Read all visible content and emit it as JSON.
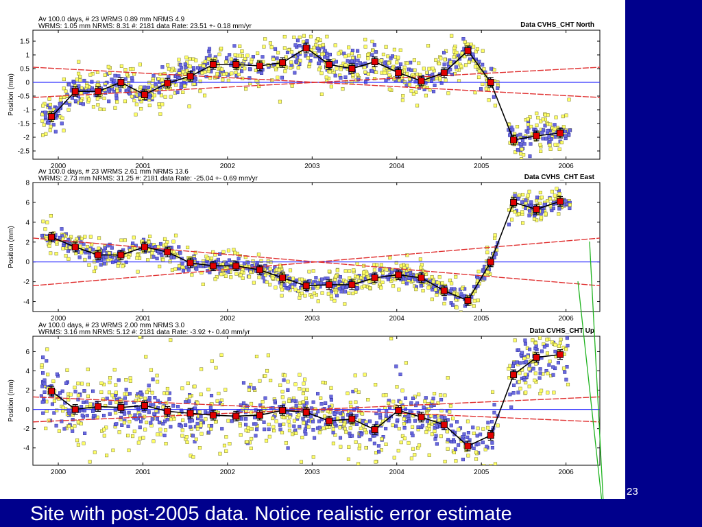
{
  "slide": {
    "caption": "Site with post-2005 data.  Notice realistic error estimate",
    "page_number": "23",
    "colors": {
      "background": "#00008c",
      "panel": "#ffffff",
      "caption": "#ffffff"
    }
  },
  "chart_data": [
    {
      "type": "scatter",
      "title": "Data CVHS_CHT North",
      "header_line1": "Av  100.0 days, # 23  WRMS   0.89 mm NRMS    4.9",
      "header_line2": "WRMS:    1.05 mm NRMS:   8.31 #:  2181 data  Rate:     23.51 +-    0.18 mm/yr",
      "ylabel": "Position (mm)",
      "xlim": [
        1999.7,
        2006.4
      ],
      "ylim": [
        -2.8,
        1.9
      ],
      "yticks": [
        -2.5,
        -2,
        -1.5,
        -1,
        -0.5,
        0,
        0.5,
        1,
        1.5
      ],
      "xticks": [
        2000,
        2001,
        2002,
        2003,
        2004,
        2005,
        2006
      ],
      "yscatter": 0.35,
      "averages": {
        "x": [
          1999.92,
          2000.2,
          2000.47,
          2000.74,
          2001.02,
          2001.29,
          2001.56,
          2001.83,
          2002.1,
          2002.38,
          2002.65,
          2002.93,
          2003.2,
          2003.47,
          2003.74,
          2004.02,
          2004.29,
          2004.56,
          2004.84,
          2005.11,
          2005.38,
          2005.65,
          2005.93
        ],
        "values": [
          -1.25,
          -0.33,
          -0.33,
          0.0,
          -0.45,
          -0.03,
          0.22,
          0.65,
          0.65,
          0.6,
          0.72,
          1.25,
          0.65,
          0.5,
          0.75,
          0.35,
          0.05,
          0.35,
          1.15,
          0.0,
          -2.1,
          -1.95,
          -1.85
        ]
      },
      "fit_line": {
        "x": [
          1999.7,
          2006.4
        ],
        "y": [
          0.0,
          0.0
        ]
      },
      "error_bounds": [
        {
          "x": [
            1999.7,
            2006.4
          ],
          "y": [
            0.55,
            -0.55
          ]
        },
        {
          "x": [
            1999.7,
            2006.4
          ],
          "y": [
            -0.55,
            0.55
          ]
        }
      ]
    },
    {
      "type": "scatter",
      "title": "Data CVHS_CHT East",
      "header_line1": "Av  100.0 days, # 23  WRMS   2.61 mm NRMS   13.6",
      "header_line2": "WRMS:    2.73 mm NRMS:  31.25 #:  2181 data  Rate:    -25.04 +-    0.69 mm/yr",
      "ylabel": "Position (mm)",
      "xlim": [
        1999.7,
        2006.4
      ],
      "ylim": [
        -5.0,
        8.0
      ],
      "yticks": [
        -4,
        -2,
        0,
        2,
        4,
        6,
        8
      ],
      "xticks": [
        2000,
        2001,
        2002,
        2003,
        2004,
        2005,
        2006
      ],
      "yscatter": 0.6,
      "averages": {
        "x": [
          1999.92,
          2000.2,
          2000.47,
          2000.74,
          2001.02,
          2001.29,
          2001.56,
          2001.83,
          2002.1,
          2002.38,
          2002.65,
          2002.93,
          2003.2,
          2003.47,
          2003.74,
          2004.02,
          2004.29,
          2004.56,
          2004.84,
          2005.11,
          2005.38,
          2005.65,
          2005.93
        ],
        "values": [
          2.5,
          1.5,
          0.7,
          0.7,
          1.5,
          1.0,
          -0.1,
          -0.4,
          -0.4,
          -0.8,
          -1.6,
          -2.4,
          -2.3,
          -2.3,
          -1.6,
          -1.3,
          -1.6,
          -2.9,
          -3.9,
          0.0,
          6.0,
          5.3,
          6.1
        ]
      },
      "fit_line": {
        "x": [
          1999.7,
          2006.4
        ],
        "y": [
          0.0,
          0.0
        ]
      },
      "error_bounds": [
        {
          "x": [
            1999.7,
            2006.4
          ],
          "y": [
            2.4,
            -2.4
          ]
        },
        {
          "x": [
            1999.7,
            2006.4
          ],
          "y": [
            -2.4,
            2.4
          ]
        }
      ]
    },
    {
      "type": "scatter",
      "title": "Data CVHS_CHT Up",
      "header_line1": "Av  100.0 days, # 23  WRMS   2.00 mm NRMS    3.0",
      "header_line2": "WRMS:    3.16 mm NRMS:   5.12 #:  2181 data  Rate:     -3.92 +-    0.40 mm/yr",
      "ylabel": "Position (mm)",
      "xlim": [
        1999.7,
        2006.4
      ],
      "ylim": [
        -5.8,
        7.6
      ],
      "yticks": [
        -4,
        -2,
        0,
        2,
        4,
        6
      ],
      "xticks": [
        2000,
        2001,
        2002,
        2003,
        2004,
        2005,
        2006
      ],
      "yscatter": 1.8,
      "averages": {
        "x": [
          1999.92,
          2000.2,
          2000.47,
          2000.74,
          2001.02,
          2001.29,
          2001.56,
          2001.83,
          2002.1,
          2002.38,
          2002.65,
          2002.93,
          2003.2,
          2003.47,
          2003.74,
          2004.02,
          2004.29,
          2004.56,
          2004.84,
          2005.11,
          2005.38,
          2005.65,
          2005.93
        ],
        "values": [
          1.9,
          0.0,
          0.3,
          0.2,
          0.4,
          -0.2,
          -0.4,
          -0.6,
          -0.7,
          -0.6,
          -0.1,
          -0.3,
          -1.2,
          -1.0,
          -2.1,
          -0.1,
          -0.8,
          -1.6,
          -3.8,
          -2.7,
          3.6,
          5.4,
          5.7
        ]
      },
      "fit_line": {
        "x": [
          1999.7,
          2006.4
        ],
        "y": [
          0.0,
          0.0
        ]
      },
      "error_bounds": [
        {
          "x": [
            1999.7,
            2006.4
          ],
          "y": [
            1.3,
            -1.3
          ]
        },
        {
          "x": [
            1999.7,
            2006.4
          ],
          "y": [
            -1.3,
            1.3
          ]
        }
      ]
    }
  ],
  "style": {
    "average_color": "#e00000",
    "line_color": "#000000",
    "fit_color": "#3030ff",
    "bound_color": "#e03030",
    "point_fill_yellow": "#ffff66",
    "point_fill_blue": "#6a6adf"
  }
}
